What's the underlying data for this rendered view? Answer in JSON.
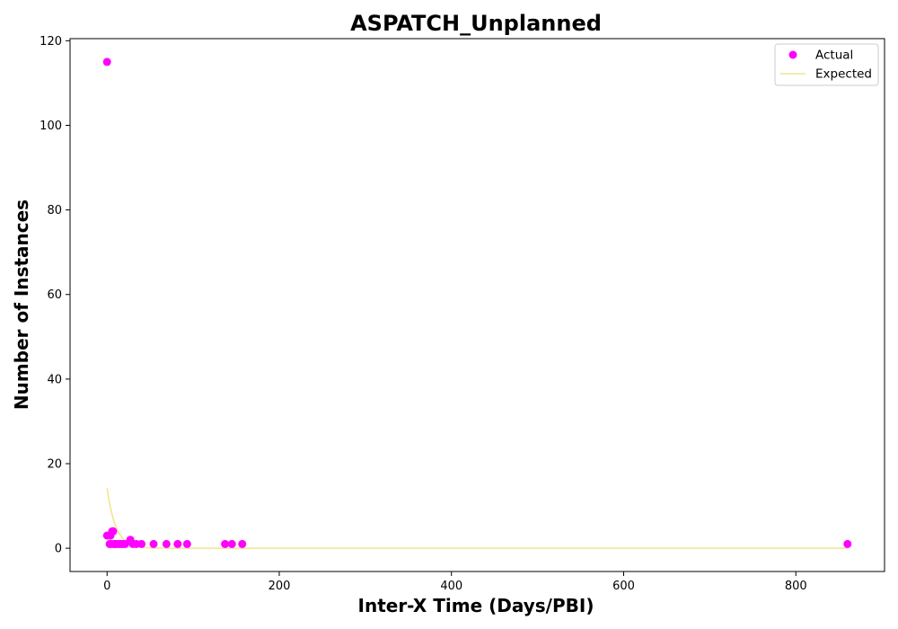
{
  "chart_data": {
    "type": "scatter",
    "title": "ASPATCH_Unplanned",
    "xlabel": "Inter-X Time (Days/PBI)",
    "ylabel": "Number of Instances",
    "xlim": [
      -43,
      903
    ],
    "ylim": [
      -5.5,
      120.5
    ],
    "x_ticks": [
      0,
      200,
      400,
      600,
      800
    ],
    "y_ticks": [
      0,
      20,
      40,
      60,
      80,
      100,
      120
    ],
    "grid": false,
    "legend_position": "top-right",
    "series": [
      {
        "name": "Actual",
        "kind": "scatter",
        "color": "#ff00ff",
        "points": [
          [
            0,
            115
          ],
          [
            0,
            3
          ],
          [
            3,
            1
          ],
          [
            4,
            3
          ],
          [
            5,
            1
          ],
          [
            6,
            4
          ],
          [
            7,
            4
          ],
          [
            8,
            1
          ],
          [
            9,
            1
          ],
          [
            11,
            1
          ],
          [
            13,
            1
          ],
          [
            15,
            1
          ],
          [
            17,
            1
          ],
          [
            19,
            1
          ],
          [
            21,
            1
          ],
          [
            27,
            2
          ],
          [
            30,
            1
          ],
          [
            34,
            1
          ],
          [
            40,
            1
          ],
          [
            54,
            1
          ],
          [
            69,
            1
          ],
          [
            82,
            1
          ],
          [
            93,
            1
          ],
          [
            137,
            1
          ],
          [
            145,
            1
          ],
          [
            157,
            1
          ],
          [
            860,
            1
          ]
        ]
      },
      {
        "name": "Expected",
        "kind": "line",
        "color": "#f0e68c",
        "points": [
          [
            0,
            14.2
          ],
          [
            2,
            11.6
          ],
          [
            4,
            9.5
          ],
          [
            6,
            7.8
          ],
          [
            8,
            6.4
          ],
          [
            10,
            5.2
          ],
          [
            12,
            4.3
          ],
          [
            14,
            3.5
          ],
          [
            16,
            2.9
          ],
          [
            18,
            2.4
          ],
          [
            20,
            1.9
          ],
          [
            25,
            1.2
          ],
          [
            30,
            0.7
          ],
          [
            35,
            0.45
          ],
          [
            40,
            0.28
          ],
          [
            50,
            0.1
          ],
          [
            60,
            0.04
          ],
          [
            80,
            0.01
          ],
          [
            100,
            0
          ],
          [
            200,
            0
          ],
          [
            400,
            0
          ],
          [
            600,
            0
          ],
          [
            860,
            0
          ]
        ]
      }
    ]
  }
}
